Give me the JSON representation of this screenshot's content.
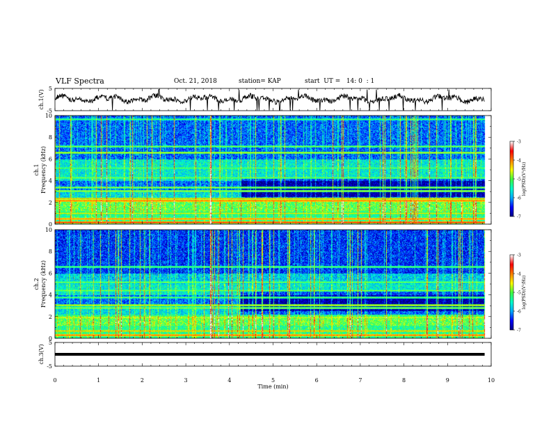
{
  "header": {
    "title": "VLF Spectra",
    "date": "Oct. 21, 2018",
    "station": "station= KAP",
    "start": "start  UT =   14: 0  : 1"
  },
  "chart_data": [
    {
      "type": "line",
      "panel": "ch1-waveform",
      "ylabel": "ch.1(V)",
      "ylim": [
        -5,
        5
      ],
      "y_ticks": [
        "5",
        "-5"
      ],
      "x_range_min": [
        0,
        10
      ],
      "data_end_min": 9.85,
      "baseline_V": 0.3,
      "noise_amplitude_V": 2.5,
      "color": "#000000"
    },
    {
      "type": "heatmap",
      "panel": "ch1-spectrogram",
      "ylabel": "ch.1\nFrequency (kHz)",
      "ylim": [
        0,
        10
      ],
      "y_ticks": [
        "0",
        "2",
        "4",
        "6",
        "8",
        "10"
      ],
      "x_range_min": [
        0,
        10
      ],
      "data_end_min": 9.85,
      "shift_time_min": 4.25,
      "colorbar": {
        "label": "log(PSD)(V²/Hz)",
        "range": [
          -7,
          -3
        ],
        "ticks": [
          "-3",
          "-4",
          "-5",
          "-6",
          "-7"
        ],
        "colors": [
          "#000080",
          "#0000ff",
          "#00aaff",
          "#00ffcc",
          "#40ff40",
          "#ffff00",
          "#ff8000",
          "#ff0000",
          "#ffffff"
        ]
      },
      "horizontal_lines": [
        {
          "freq_kHz": 0.2,
          "level": -3.6
        },
        {
          "freq_kHz": 0.5,
          "level": -3.9
        },
        {
          "freq_kHz": 1.0,
          "level": -4.4
        },
        {
          "freq_kHz": 2.15,
          "level": -3.8
        },
        {
          "freq_kHz": 2.4,
          "level": -4.2
        },
        {
          "freq_kHz": 3.05,
          "level": -4.6
        },
        {
          "freq_kHz": 3.4,
          "level": -4.7
        },
        {
          "freq_kHz": 4.3,
          "level": -4.8
        },
        {
          "freq_kHz": 5.2,
          "level": -4.9
        },
        {
          "freq_kHz": 6.6,
          "level": -4.5
        },
        {
          "freq_kHz": 7.2,
          "level": -4.8
        },
        {
          "freq_kHz": 9.7,
          "level": -5.0
        }
      ],
      "bright_sferic_time_min": 3.55
    },
    {
      "type": "heatmap",
      "panel": "ch2-spectrogram",
      "ylabel": "ch.2\nFrequency (kHz)",
      "ylim": [
        0,
        10
      ],
      "y_ticks": [
        "0",
        "2",
        "4",
        "6",
        "8",
        "10"
      ],
      "x_range_min": [
        0,
        10
      ],
      "data_end_min": 9.85,
      "shift_time_min": 4.25,
      "colorbar": {
        "label": "log(PSD)(V²/Hz)",
        "range": [
          -7,
          -3
        ],
        "ticks": [
          "-3",
          "-4",
          "-5",
          "-6",
          "-7"
        ],
        "colors": [
          "#000080",
          "#0000ff",
          "#00aaff",
          "#00ffcc",
          "#40ff40",
          "#ffff00",
          "#ff8000",
          "#ff0000",
          "#ffffff"
        ]
      },
      "horizontal_lines": [
        {
          "freq_kHz": 0.3,
          "level": -3.8
        },
        {
          "freq_kHz": 0.7,
          "level": -4.2
        },
        {
          "freq_kHz": 1.9,
          "level": -4.6
        },
        {
          "freq_kHz": 2.8,
          "level": -4.7
        },
        {
          "freq_kHz": 3.1,
          "level": -4.4
        },
        {
          "freq_kHz": 3.8,
          "level": -4.9
        },
        {
          "freq_kHz": 4.4,
          "level": -4.8
        },
        {
          "freq_kHz": 5.2,
          "level": -4.8
        },
        {
          "freq_kHz": 6.6,
          "level": -4.9
        }
      ],
      "bright_sferic_time_min": 3.55
    },
    {
      "type": "line",
      "panel": "ch3-waveform",
      "ylabel": "ch.3(V)",
      "ylim": [
        -5,
        5
      ],
      "y_ticks": [
        "5",
        "-5"
      ],
      "x_range_min": [
        0,
        10
      ],
      "data_end_min": 9.85,
      "baseline_V": 0.0,
      "color": "#000000",
      "xlabel": "Time (min)",
      "x_ticks": [
        "0",
        "1",
        "2",
        "3",
        "4",
        "5",
        "6",
        "7",
        "8",
        "9",
        "10"
      ]
    }
  ]
}
